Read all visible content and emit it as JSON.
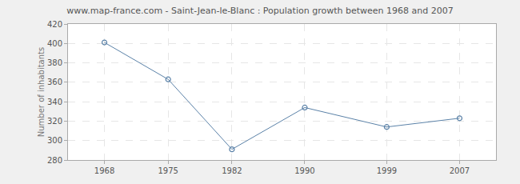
{
  "chart_data": {
    "type": "line",
    "title": "www.map-france.com - Saint-Jean-le-Blanc : Population growth between 1968 and 2007",
    "y_label": "Number of inhabitants",
    "x": [
      1968,
      1975,
      1982,
      1990,
      1999,
      2007
    ],
    "values": [
      401,
      363,
      291,
      334,
      314,
      323
    ],
    "color": "#5b82a8",
    "marker": "circle-open",
    "xlim": [
      1964,
      2011
    ],
    "xticks": [
      1968,
      1975,
      1982,
      1990,
      1999,
      2007
    ],
    "ylim": [
      280,
      420
    ],
    "yticks": [
      280,
      300,
      320,
      340,
      360,
      380,
      400,
      420
    ],
    "grid": true
  }
}
